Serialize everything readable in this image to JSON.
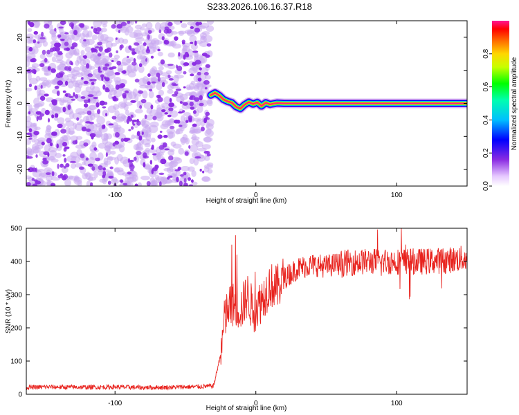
{
  "title": "S233.2026.106.16.37.R18",
  "colors": {
    "frame": "#000000",
    "snr_line": "#e8231e",
    "noise": "#8a2be2",
    "noise_light": "#c9a8f0"
  },
  "chart_data": [
    {
      "type": "heatmap",
      "name": "spectrogram",
      "xlabel": "Height of straight line (km)",
      "ylabel": "Frequency (Hz)",
      "xlim": [
        -163,
        150
      ],
      "ylim": [
        -25,
        25
      ],
      "xticks": [
        -100,
        0,
        100
      ],
      "xtick_labels": [
        "-100",
        "0",
        "100"
      ],
      "yticks": [
        -20,
        -10,
        0,
        10,
        20
      ],
      "ytick_labels": [
        "-20",
        "-10",
        "0",
        "10",
        "20"
      ],
      "noise_region_x": [
        -163,
        -32
      ],
      "signal_trace": {
        "x": [
          -32,
          -29,
          -26,
          -23,
          -20,
          -17,
          -14,
          -11,
          -8,
          -5,
          -2,
          1,
          4,
          7,
          10,
          15,
          20,
          40,
          80,
          120,
          150
        ],
        "y": [
          2.5,
          3.2,
          2.4,
          1.2,
          0.6,
          0.2,
          -1.0,
          -1.6,
          -0.4,
          0.4,
          -0.2,
          0.3,
          -0.8,
          0.2,
          -0.3,
          0.1,
          0,
          0,
          0,
          0,
          0
        ]
      },
      "colorbar": {
        "label": "Normalized spectral amplitude",
        "ticks": [
          0.0,
          0.2,
          0.4,
          0.6,
          0.8
        ],
        "tick_labels": [
          "0.0",
          "0.2",
          "0.4",
          "0.6",
          "0.8"
        ],
        "range": [
          0,
          1
        ]
      }
    },
    {
      "type": "line",
      "name": "snr",
      "xlabel": "Height of straight line (km)",
      "ylabel": "SNR (10 * v/v)",
      "xlim": [
        -163,
        150
      ],
      "ylim": [
        0,
        500
      ],
      "xticks": [
        -100,
        0,
        100
      ],
      "xtick_labels": [
        "-100",
        "0",
        "100"
      ],
      "yticks": [
        0,
        100,
        200,
        300,
        400,
        500
      ],
      "ytick_labels": [
        "0",
        "100",
        "200",
        "300",
        "400",
        "500"
      ],
      "series": [
        {
          "name": "SNR",
          "x": [
            -163,
            -150,
            -120,
            -100,
            -80,
            -60,
            -40,
            -30,
            -25,
            -22,
            -20,
            -17,
            -14,
            -10,
            -6,
            -2,
            2,
            6,
            10,
            15,
            20,
            30,
            40,
            50,
            60,
            80,
            100,
            120,
            140,
            150
          ],
          "y": [
            20,
            22,
            21,
            22,
            20,
            21,
            23,
            25,
            120,
            230,
            250,
            270,
            265,
            260,
            300,
            250,
            270,
            300,
            330,
            320,
            350,
            380,
            390,
            385,
            395,
            400,
            400,
            400,
            405,
            410
          ]
        }
      ]
    }
  ]
}
